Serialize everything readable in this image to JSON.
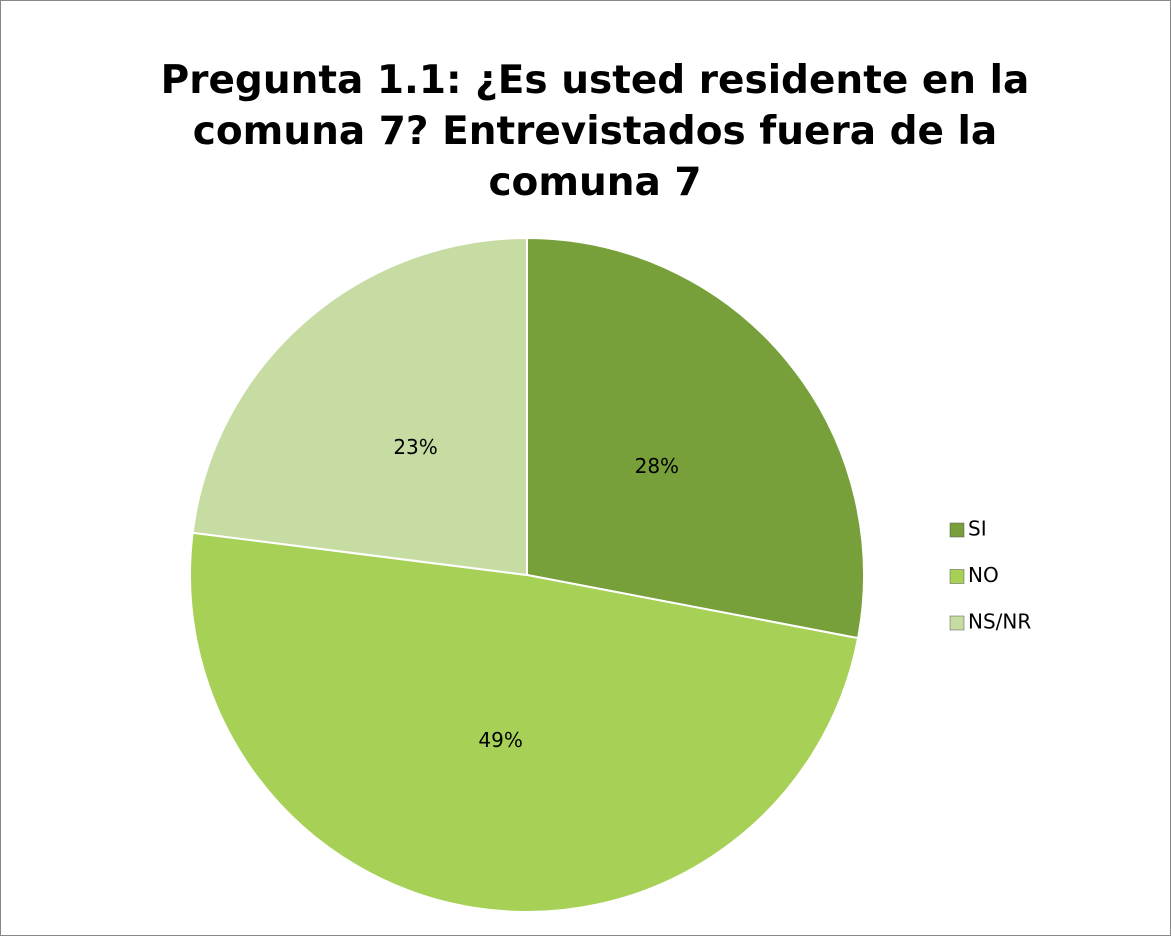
{
  "chart_data": {
    "type": "pie",
    "title": "Pregunta 1.1: ¿Es usted residente en la comuna 7? Entrevistados fuera de la comuna 7",
    "categories": [
      "SI",
      "NO",
      "NS/NR"
    ],
    "values": [
      28,
      49,
      23
    ],
    "value_labels": [
      "28%",
      "49%",
      "23%"
    ],
    "colors": [
      "#77a03a",
      "#a6d156",
      "#c7dca2"
    ],
    "legend": "right"
  }
}
